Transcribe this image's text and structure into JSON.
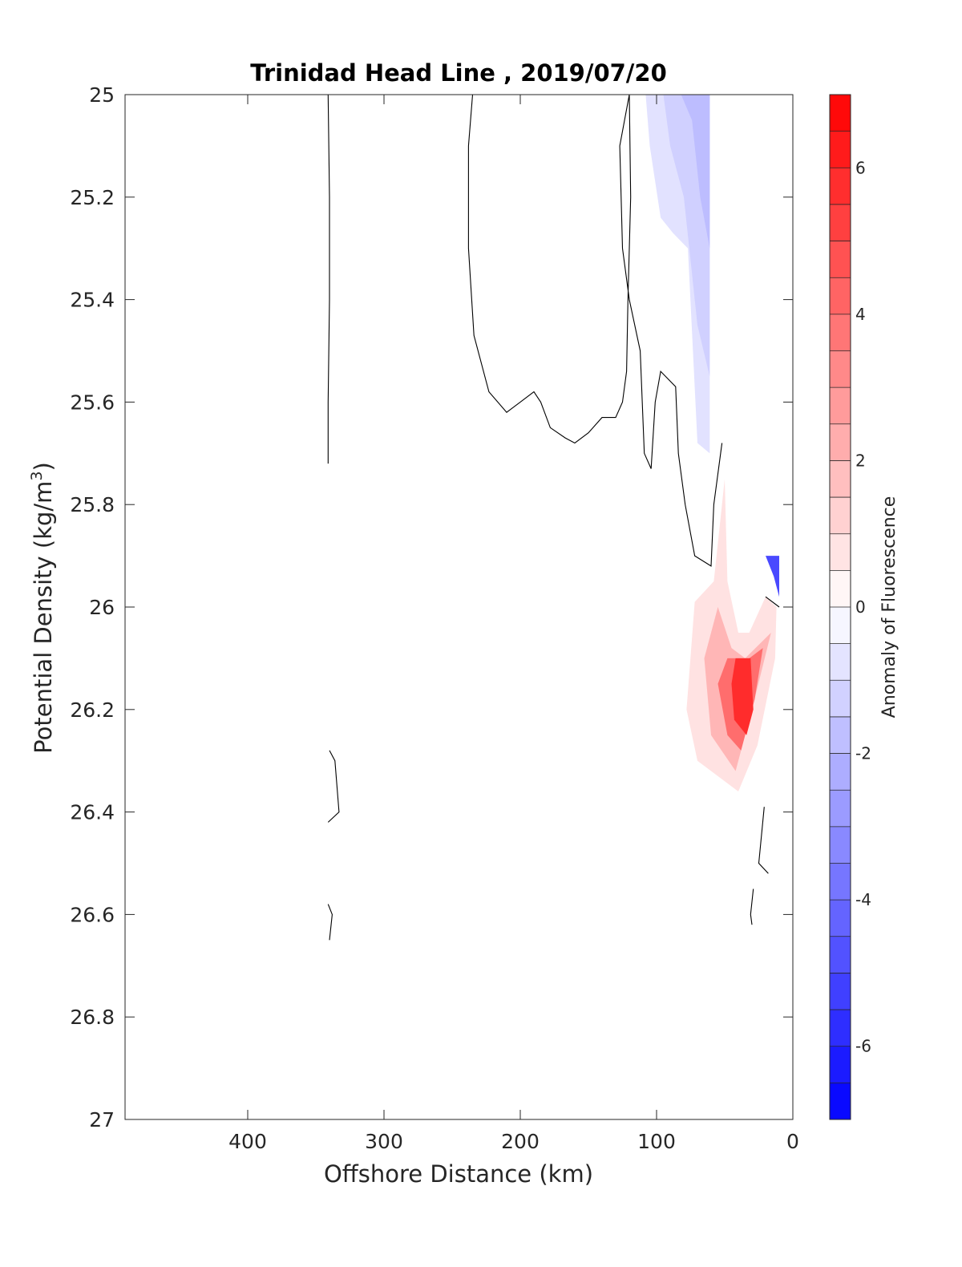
{
  "chart_data": {
    "type": "contour",
    "title": "Trinidad Head Line , 2019/07/20",
    "xlabel": "Offshore Distance (km)",
    "ylabel_main": "Potential Density (kg/m",
    "ylabel_sup": "3",
    "ylabel_close": ")",
    "xlim": [
      490,
      0
    ],
    "x_reversed": true,
    "ylim": [
      25,
      27
    ],
    "y_reversed": true,
    "x_ticks": [
      400,
      300,
      200,
      100,
      0
    ],
    "y_ticks": [
      25,
      25.2,
      25.4,
      25.6,
      25.8,
      26,
      26.2,
      26.4,
      26.6,
      26.8,
      27
    ],
    "y_tick_labels": [
      "25",
      "25.2",
      "25.4",
      "25.6",
      "25.8",
      "26",
      "26.2",
      "26.4",
      "26.6",
      "26.8",
      "27"
    ],
    "grid": false,
    "colorbar": {
      "label": "Anomaly of Fluorescence",
      "range": [
        -7,
        7
      ],
      "levels": 28,
      "ticks": [
        6,
        4,
        2,
        0,
        -2,
        -4,
        -6
      ],
      "low_color": "#0000ff",
      "mid_color": "#ffffff",
      "high_color": "#ff0000"
    },
    "filled_regions": [
      {
        "name": "negative-anomaly-surface",
        "value": -0.8,
        "points": [
          [
            108,
            25
          ],
          [
            61,
            25
          ],
          [
            61,
            25.7
          ],
          [
            70,
            25.68
          ],
          [
            77,
            25.3
          ],
          [
            88,
            25.27
          ],
          [
            97,
            25.24
          ],
          [
            105,
            25.1
          ]
        ]
      },
      {
        "name": "negative-anomaly-surface-core1",
        "value": -1.3,
        "points": [
          [
            95,
            25
          ],
          [
            61,
            25
          ],
          [
            61,
            25.55
          ],
          [
            70,
            25.45
          ],
          [
            80,
            25.2
          ],
          [
            90,
            25.1
          ]
        ]
      },
      {
        "name": "negative-anomaly-surface-core2",
        "value": -1.8,
        "points": [
          [
            82,
            25
          ],
          [
            61,
            25
          ],
          [
            61,
            25.3
          ],
          [
            68,
            25.2
          ],
          [
            74,
            25.05
          ]
        ]
      },
      {
        "name": "negative-anomaly-nearshore",
        "value": -5,
        "points": [
          [
            20,
            25.9
          ],
          [
            10,
            25.9
          ],
          [
            10,
            25.98
          ],
          [
            14,
            25.94
          ]
        ]
      },
      {
        "name": "positive-anomaly-1",
        "value": 0.8,
        "points": [
          [
            50,
            25.75
          ],
          [
            58,
            25.95
          ],
          [
            72,
            25.99
          ],
          [
            78,
            26.2
          ],
          [
            70,
            26.3
          ],
          [
            40,
            26.36
          ],
          [
            26,
            26.27
          ],
          [
            13,
            26.1
          ],
          [
            12,
            26.0
          ],
          [
            20,
            25.98
          ],
          [
            32,
            26.05
          ],
          [
            40,
            26.05
          ],
          [
            48,
            25.95
          ]
        ]
      },
      {
        "name": "positive-anomaly-2",
        "value": 2,
        "points": [
          [
            55,
            26.0
          ],
          [
            65,
            26.1
          ],
          [
            60,
            26.25
          ],
          [
            42,
            26.32
          ],
          [
            30,
            26.2
          ],
          [
            16,
            26.05
          ],
          [
            35,
            26.1
          ],
          [
            45,
            26.08
          ]
        ]
      },
      {
        "name": "positive-anomaly-3",
        "value": 4,
        "points": [
          [
            48,
            26.1
          ],
          [
            55,
            26.15
          ],
          [
            48,
            26.25
          ],
          [
            38,
            26.28
          ],
          [
            28,
            26.18
          ],
          [
            22,
            26.08
          ],
          [
            32,
            26.1
          ]
        ]
      },
      {
        "name": "positive-anomaly-core",
        "value": 5.8,
        "points": [
          [
            42,
            26.1
          ],
          [
            31,
            26.1
          ],
          [
            29,
            26.2
          ],
          [
            34,
            26.25
          ],
          [
            43,
            26.22
          ],
          [
            45,
            26.15
          ]
        ]
      }
    ],
    "zero_contours": [
      {
        "name": "zero-contour-offshore",
        "points": [
          [
            341,
            25
          ],
          [
            340,
            25.2
          ],
          [
            340,
            25.4
          ],
          [
            341,
            25.6
          ],
          [
            341,
            25.72
          ]
        ]
      },
      {
        "name": "zero-contour-upper-loop",
        "points": [
          [
            235,
            25
          ],
          [
            238,
            25.1
          ],
          [
            238,
            25.3
          ],
          [
            234,
            25.47
          ],
          [
            223,
            25.58
          ],
          [
            210,
            25.62
          ],
          [
            200,
            25.6
          ],
          [
            190,
            25.58
          ],
          [
            185,
            25.6
          ],
          [
            178,
            25.65
          ],
          [
            167,
            25.67
          ],
          [
            160,
            25.68
          ],
          [
            150,
            25.66
          ],
          [
            140,
            25.63
          ],
          [
            130,
            25.63
          ],
          [
            125,
            25.6
          ],
          [
            122,
            25.54
          ],
          [
            121,
            25.4
          ],
          [
            119,
            25.2
          ],
          [
            120,
            25.0
          ],
          [
            127,
            25.1
          ],
          [
            125,
            25.3
          ],
          [
            120,
            25.4
          ],
          [
            112,
            25.5
          ],
          [
            109,
            25.7
          ],
          [
            104,
            25.73
          ],
          [
            101,
            25.6
          ],
          [
            97,
            25.54
          ],
          [
            86,
            25.57
          ],
          [
            84,
            25.7
          ],
          [
            79,
            25.8
          ],
          [
            72,
            25.9
          ],
          [
            60,
            25.92
          ],
          [
            58,
            25.8
          ],
          [
            52,
            25.68
          ]
        ]
      },
      {
        "name": "zero-contour-deep-left",
        "points": [
          [
            340,
            26.28
          ],
          [
            336,
            26.3
          ],
          [
            333,
            26.4
          ],
          [
            341,
            26.42
          ]
        ]
      },
      {
        "name": "zero-contour-deep-left-2",
        "points": [
          [
            341,
            26.58
          ],
          [
            338,
            26.6
          ],
          [
            340,
            26.65
          ]
        ]
      },
      {
        "name": "zero-contour-nearshore-1",
        "points": [
          [
            20,
            25.98
          ],
          [
            10,
            26.0
          ]
        ]
      },
      {
        "name": "zero-contour-nearshore-2",
        "points": [
          [
            21,
            26.39
          ],
          [
            25,
            26.5
          ],
          [
            18,
            26.52
          ]
        ]
      },
      {
        "name": "zero-contour-nearshore-3",
        "points": [
          [
            29,
            26.55
          ],
          [
            31,
            26.6
          ],
          [
            30,
            26.62
          ]
        ]
      }
    ]
  }
}
